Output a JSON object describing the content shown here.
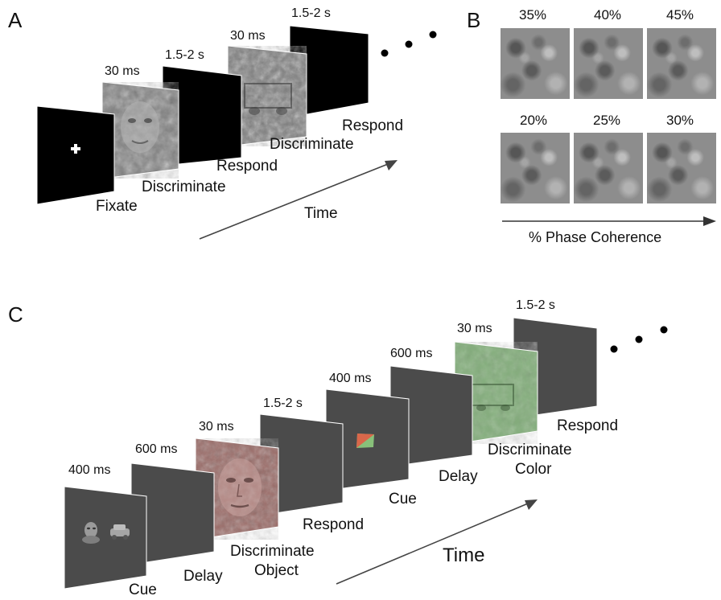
{
  "panel_a": {
    "letter": "A",
    "frames": [
      {
        "duration": "",
        "label": "Fixate",
        "content": "fixation-cross"
      },
      {
        "duration": "30 ms",
        "label": "Discriminate",
        "content": "noisy-face"
      },
      {
        "duration": "1.5-2 s",
        "label": "Respond",
        "content": "blank-black"
      },
      {
        "duration": "30 ms",
        "label": "Discriminate",
        "content": "noisy-car"
      },
      {
        "duration": "1.5-2 s",
        "label": "Respond",
        "content": "blank-black"
      }
    ],
    "time_label": "Time"
  },
  "panel_b": {
    "letter": "B",
    "row1": [
      "35%",
      "40%",
      "45%"
    ],
    "row2": [
      "20%",
      "25%",
      "30%"
    ],
    "axis_label": "% Phase Coherence"
  },
  "panel_c": {
    "letter": "C",
    "frames": [
      {
        "duration": "400 ms",
        "label": "Cue",
        "content": "face-car-icons"
      },
      {
        "duration": "600 ms",
        "label": "Delay",
        "content": "blank-gray"
      },
      {
        "duration": "30 ms",
        "label": "Discriminate Object",
        "label_line1": "Discriminate",
        "label_line2": "Object",
        "content": "red-noisy-face"
      },
      {
        "duration": "1.5-2 s",
        "label": "Respond",
        "content": "blank-gray"
      },
      {
        "duration": "400 ms",
        "label": "Cue",
        "content": "color-square"
      },
      {
        "duration": "600 ms",
        "label": "Delay",
        "content": "blank-gray"
      },
      {
        "duration": "30 ms",
        "label": "Discriminate Color",
        "label_line1": "Discriminate",
        "label_line2": "Color",
        "content": "green-noisy-car"
      },
      {
        "duration": "1.5-2 s",
        "label": "Respond",
        "content": "blank-gray"
      }
    ],
    "time_label": "Time"
  },
  "colors": {
    "black_frame": "#000000",
    "gray_frame": "#4b4b4b",
    "red_tint": "#9a6a66",
    "green_tint": "#8aab84",
    "cue_red": "#d9674a",
    "cue_green": "#88c07a"
  }
}
